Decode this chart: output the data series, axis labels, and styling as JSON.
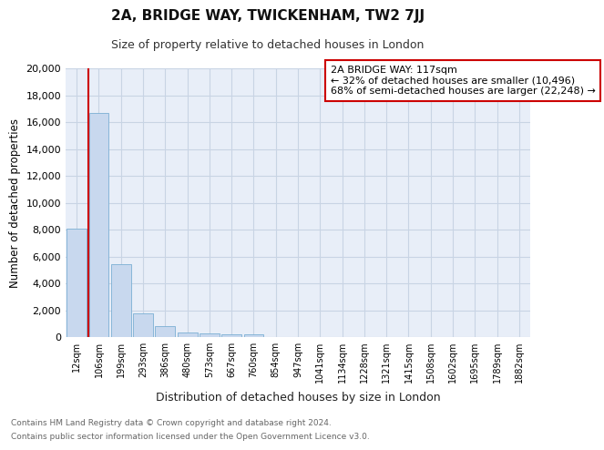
{
  "title": "2A, BRIDGE WAY, TWICKENHAM, TW2 7JJ",
  "subtitle": "Size of property relative to detached houses in London",
  "xlabel": "Distribution of detached houses by size in London",
  "ylabel": "Number of detached properties",
  "footnote1": "Contains HM Land Registry data © Crown copyright and database right 2024.",
  "footnote2": "Contains public sector information licensed under the Open Government Licence v3.0.",
  "bar_labels": [
    "12sqm",
    "106sqm",
    "199sqm",
    "293sqm",
    "386sqm",
    "480sqm",
    "573sqm",
    "667sqm",
    "760sqm",
    "854sqm",
    "947sqm",
    "1041sqm",
    "1134sqm",
    "1228sqm",
    "1321sqm",
    "1415sqm",
    "1508sqm",
    "1602sqm",
    "1695sqm",
    "1789sqm",
    "1882sqm"
  ],
  "bar_values": [
    8100,
    16700,
    5400,
    1750,
    800,
    370,
    290,
    220,
    200,
    0,
    0,
    0,
    0,
    0,
    0,
    0,
    0,
    0,
    0,
    0,
    0
  ],
  "bar_color": "#c8d8ee",
  "bar_edge_color": "#7bafd4",
  "grid_color": "#c8d4e4",
  "background_color": "#e8eef8",
  "annotation_text": "2A BRIDGE WAY: 117sqm\n← 32% of detached houses are smaller (10,496)\n68% of semi-detached houses are larger (22,248) →",
  "annotation_box_color": "#ffffff",
  "annotation_box_edge": "#cc0000",
  "ylim": [
    0,
    20000
  ],
  "yticks": [
    0,
    2000,
    4000,
    6000,
    8000,
    10000,
    12000,
    14000,
    16000,
    18000,
    20000
  ]
}
